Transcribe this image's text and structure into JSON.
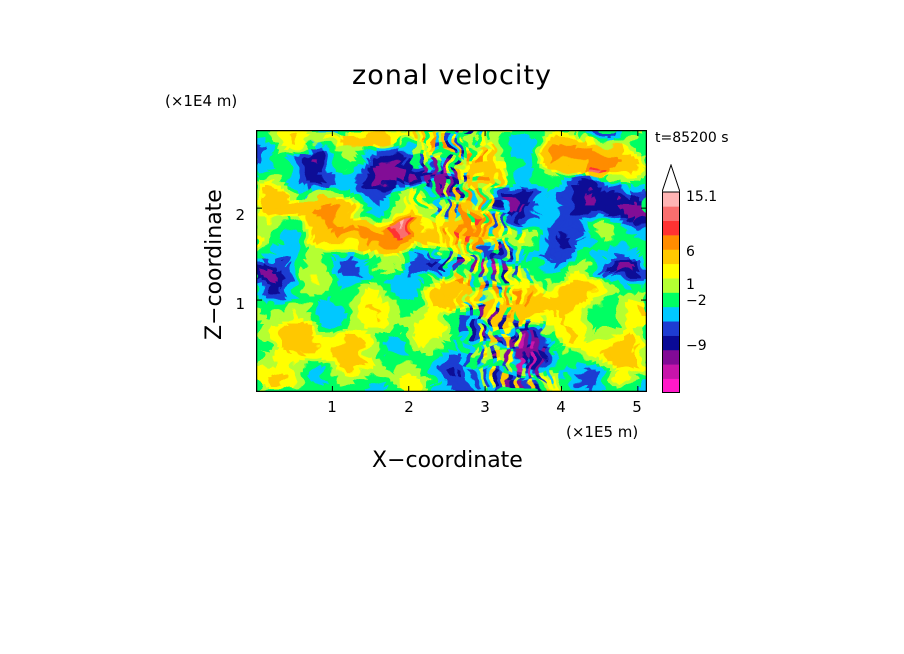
{
  "chart_data": {
    "type": "heatmap",
    "title": "zonal velocity",
    "xlabel": "X−coordinate",
    "ylabel": "Z−coordinate",
    "x_unit": "(×1E5 m)",
    "z_unit": "(×1E4 m)",
    "time_label": "t=85200 s",
    "xlim": [
      0,
      5.12
    ],
    "ylim": [
      0,
      2.85
    ],
    "x_ticks": [
      "1",
      "2",
      "3",
      "4",
      "5"
    ],
    "x_tick_values": [
      1,
      2,
      3,
      4,
      5
    ],
    "y_ticks": [
      "1",
      "2"
    ],
    "y_tick_values": [
      1,
      2
    ],
    "colorbar": {
      "labels": [
        "15.1",
        "6",
        "1",
        "−2",
        "−9"
      ],
      "label_values": [
        15.1,
        6,
        1,
        -2,
        -9
      ],
      "levels": [
        -12,
        -9,
        -6,
        -3,
        -2,
        -1,
        0,
        1,
        2,
        3,
        6,
        9,
        12,
        15.1
      ],
      "colors": [
        "#ff19c8",
        "#c814aa",
        "#820a96",
        "#0a0a96",
        "#1e3cd2",
        "#00c8ff",
        "#00ff64",
        "#b4ff32",
        "#ffff00",
        "#ffc800",
        "#ff8c00",
        "#ff3232",
        "#fa6e6e",
        "#ffb4b4"
      ],
      "overflow_color": "#ffffff"
    },
    "features": [
      {
        "x": 1.8,
        "z": 2.35,
        "value": -4,
        "sx": 0.85,
        "sz": 0.17
      },
      {
        "x": 0.75,
        "z": 2.55,
        "value": -3,
        "sx": 0.25,
        "sz": 0.1
      },
      {
        "x": 4.6,
        "z": 2.0,
        "value": -3.5,
        "sx": 0.7,
        "sz": 0.22
      },
      {
        "x": 3.6,
        "z": 2.1,
        "value": -3,
        "sx": 0.4,
        "sz": 0.18
      },
      {
        "x": 1.8,
        "z": 1.7,
        "value": 7,
        "sx": 1.1,
        "sz": 0.18
      },
      {
        "x": 1.9,
        "z": 1.78,
        "value": 10,
        "sx": 0.15,
        "sz": 0.05
      },
      {
        "x": 0.7,
        "z": 2.0,
        "value": 5,
        "sx": 0.6,
        "sz": 0.15
      },
      {
        "x": 4.3,
        "z": 2.55,
        "value": 7,
        "sx": 0.65,
        "sz": 0.15
      },
      {
        "x": 4.45,
        "z": 2.4,
        "value": 12,
        "sx": 0.12,
        "sz": 0.05
      },
      {
        "x": 1.4,
        "z": 2.75,
        "value": 5,
        "sx": 0.6,
        "sz": 0.08
      },
      {
        "x": 0.15,
        "z": 1.35,
        "value": -3.5,
        "sx": 0.35,
        "sz": 0.18
      },
      {
        "x": 1.05,
        "z": 1.25,
        "value": -0.5,
        "sx": 0.6,
        "sz": 0.15
      },
      {
        "x": 2.4,
        "z": 1.4,
        "value": -3.5,
        "sx": 0.4,
        "sz": 0.17
      },
      {
        "x": 3.6,
        "z": 1.5,
        "value": -2.5,
        "sx": 0.5,
        "sz": 0.15
      },
      {
        "x": 4.8,
        "z": 1.35,
        "value": -2,
        "sx": 0.35,
        "sz": 0.15
      },
      {
        "x": 2.5,
        "z": 1.05,
        "value": 4,
        "sx": 0.45,
        "sz": 0.2
      },
      {
        "x": 3.8,
        "z": 1.0,
        "value": 5,
        "sx": 0.5,
        "sz": 0.2
      },
      {
        "x": 0.5,
        "z": 0.45,
        "value": 2.5,
        "sx": 0.9,
        "sz": 0.35
      },
      {
        "x": 1.6,
        "z": 0.55,
        "value": 1.2,
        "sx": 0.6,
        "sz": 0.35
      },
      {
        "x": 3.6,
        "z": 0.4,
        "value": -3.5,
        "sx": 0.25,
        "sz": 0.25
      },
      {
        "x": 4.7,
        "z": 0.55,
        "value": 3,
        "sx": 0.45,
        "sz": 0.35
      },
      {
        "x": 3.0,
        "z": 0.3,
        "value": -2,
        "sx": 0.35,
        "sz": 0.2
      },
      {
        "x": 2.9,
        "z": 2.2,
        "value": 3,
        "sx": 0.3,
        "sz": 0.7
      }
    ]
  }
}
